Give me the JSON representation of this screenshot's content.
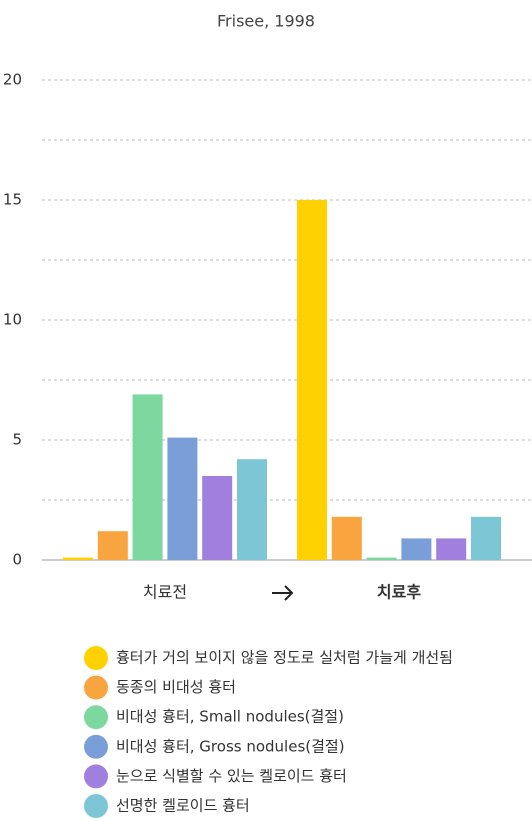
{
  "chart_data": {
    "type": "bar",
    "title": "Frisee, 1998",
    "categories": [
      "치료전",
      "치료후"
    ],
    "series": [
      {
        "name": "흉터가 거의 보이지 않을 정도로 실처럼 가늘게 개선됨",
        "color": "#FFD100",
        "values": [
          0.1,
          15
        ]
      },
      {
        "name": "동종의 비대성 흉터",
        "color": "#F9A53F",
        "values": [
          1.2,
          1.8
        ]
      },
      {
        "name": "비대성 흉터, Small nodules(결절)",
        "color": "#7DD8A0",
        "values": [
          6.9,
          0.1
        ]
      },
      {
        "name": "비대성 흉터, Gross nodules(결절)",
        "color": "#7A9FD8",
        "values": [
          5.1,
          0.9
        ]
      },
      {
        "name": "눈으로 식별할 수 있는 켈로이드 흉터",
        "color": "#A07FDE",
        "values": [
          3.5,
          0.9
        ]
      },
      {
        "name": "선명한 켈로이드 흉터",
        "color": "#7CC6D6",
        "values": [
          4.2,
          1.8
        ]
      }
    ],
    "ylim": [
      0,
      20
    ],
    "yticks": [
      0,
      5,
      10,
      15,
      20
    ],
    "minor_yticks": [
      2.5,
      7.5,
      12.5,
      17.5
    ],
    "grid": true
  }
}
